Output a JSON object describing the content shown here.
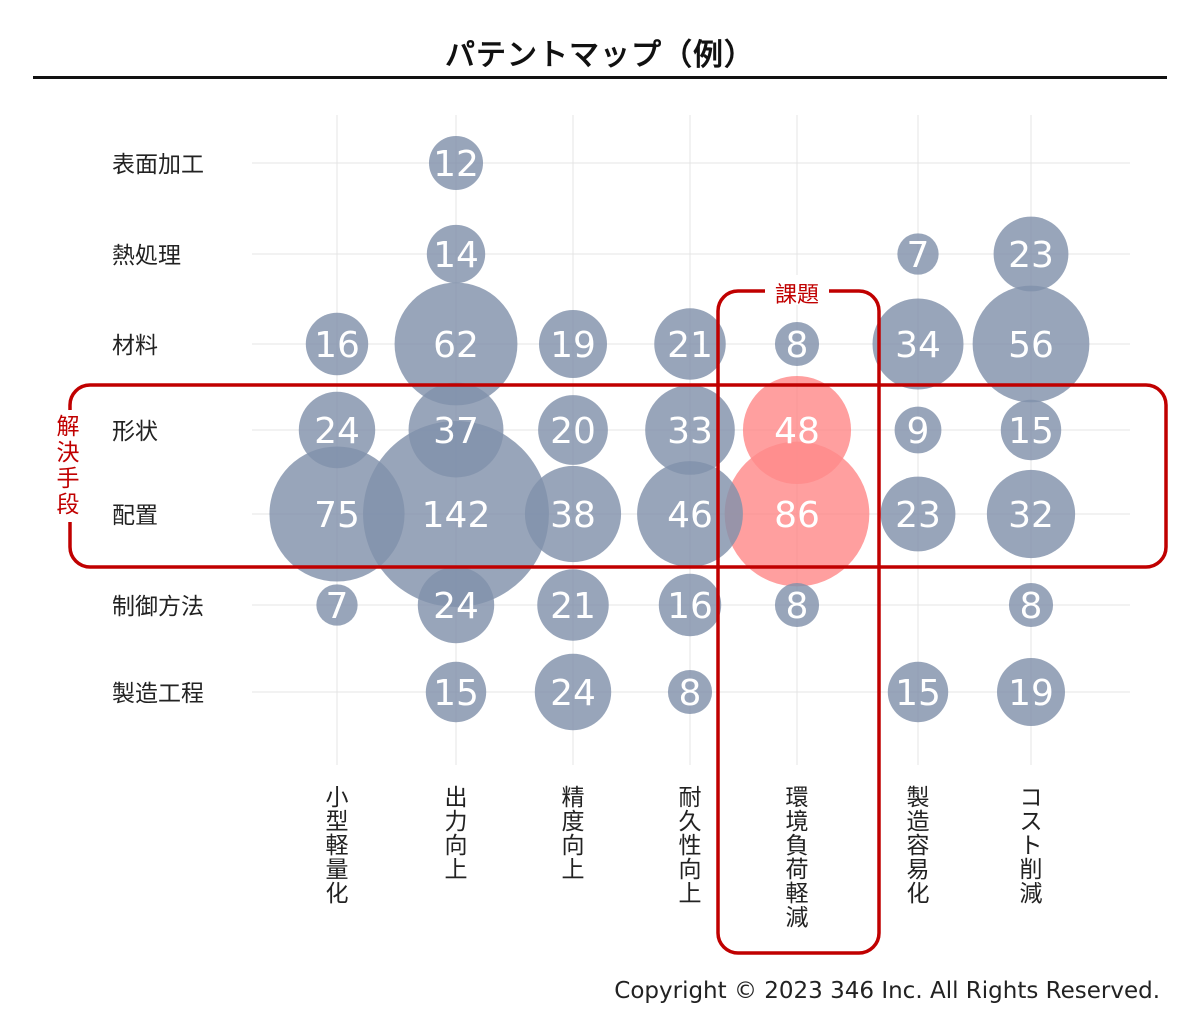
{
  "title": "パテントマップ（例）",
  "copyright": "Copyright © 2023 346 Inc. All Rights Reserved.",
  "colors": {
    "bubble": "#8191ab",
    "highlight_bubble": "#ff8a8a",
    "frame": "#c00000",
    "grid": "#e4e4e4",
    "text": "#222222"
  },
  "chart_data": {
    "type": "bubble",
    "x_categories": [
      "小型軽量化",
      "出力向上",
      "精度向上",
      "耐久性向上",
      "環境負荷軽減",
      "製造容易化",
      "コスト削減"
    ],
    "y_categories": [
      "表面加工",
      "熱処理",
      "材料",
      "形状",
      "配置",
      "制御方法",
      "製造工程"
    ],
    "points": [
      {
        "x": "出力向上",
        "y": "表面加工",
        "value": 12
      },
      {
        "x": "出力向上",
        "y": "熱処理",
        "value": 14
      },
      {
        "x": "製造容易化",
        "y": "熱処理",
        "value": 7
      },
      {
        "x": "コスト削減",
        "y": "熱処理",
        "value": 23
      },
      {
        "x": "小型軽量化",
        "y": "材料",
        "value": 16
      },
      {
        "x": "出力向上",
        "y": "材料",
        "value": 62
      },
      {
        "x": "精度向上",
        "y": "材料",
        "value": 19
      },
      {
        "x": "耐久性向上",
        "y": "材料",
        "value": 21
      },
      {
        "x": "環境負荷軽減",
        "y": "材料",
        "value": 8
      },
      {
        "x": "製造容易化",
        "y": "材料",
        "value": 34
      },
      {
        "x": "コスト削減",
        "y": "材料",
        "value": 56
      },
      {
        "x": "小型軽量化",
        "y": "形状",
        "value": 24
      },
      {
        "x": "出力向上",
        "y": "形状",
        "value": 37
      },
      {
        "x": "精度向上",
        "y": "形状",
        "value": 20
      },
      {
        "x": "耐久性向上",
        "y": "形状",
        "value": 33
      },
      {
        "x": "環境負荷軽減",
        "y": "形状",
        "value": 48,
        "highlight": true
      },
      {
        "x": "製造容易化",
        "y": "形状",
        "value": 9
      },
      {
        "x": "コスト削減",
        "y": "形状",
        "value": 15
      },
      {
        "x": "小型軽量化",
        "y": "配置",
        "value": 75
      },
      {
        "x": "出力向上",
        "y": "配置",
        "value": 142
      },
      {
        "x": "精度向上",
        "y": "配置",
        "value": 38
      },
      {
        "x": "耐久性向上",
        "y": "配置",
        "value": 46
      },
      {
        "x": "環境負荷軽減",
        "y": "配置",
        "value": 86,
        "highlight": true
      },
      {
        "x": "製造容易化",
        "y": "配置",
        "value": 23
      },
      {
        "x": "コスト削減",
        "y": "配置",
        "value": 32
      },
      {
        "x": "小型軽量化",
        "y": "制御方法",
        "value": 7
      },
      {
        "x": "出力向上",
        "y": "制御方法",
        "value": 24
      },
      {
        "x": "精度向上",
        "y": "制御方法",
        "value": 21
      },
      {
        "x": "耐久性向上",
        "y": "制御方法",
        "value": 16
      },
      {
        "x": "環境負荷軽減",
        "y": "制御方法",
        "value": 8
      },
      {
        "x": "コスト削減",
        "y": "制御方法",
        "value": 8
      },
      {
        "x": "出力向上",
        "y": "製造工程",
        "value": 15
      },
      {
        "x": "精度向上",
        "y": "製造工程",
        "value": 24
      },
      {
        "x": "耐久性向上",
        "y": "製造工程",
        "value": 8
      },
      {
        "x": "製造容易化",
        "y": "製造工程",
        "value": 15
      },
      {
        "x": "コスト削減",
        "y": "製造工程",
        "value": 19
      }
    ],
    "annotations": {
      "column_highlight": {
        "label": "課題",
        "category": "環境負荷軽減"
      },
      "row_highlight": {
        "label": "解決手段",
        "categories": [
          "形状",
          "配置"
        ]
      }
    },
    "grid": true
  }
}
